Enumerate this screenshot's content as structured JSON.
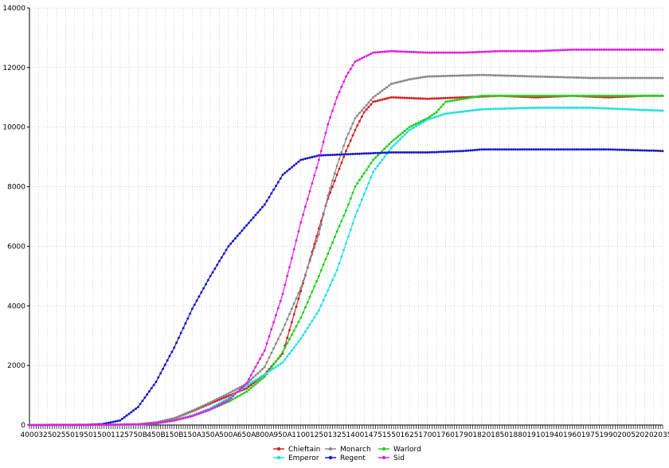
{
  "chart_data": {
    "type": "line",
    "title": "",
    "xlabel": "",
    "ylabel": "",
    "ylim": [
      0,
      14000
    ],
    "yticks": [
      0,
      2000,
      4000,
      6000,
      8000,
      10000,
      12000,
      14000
    ],
    "x_tick_labels": [
      "4000",
      "3250",
      "2550",
      "1950",
      "1500",
      "1125",
      "750B",
      "450B",
      "150B",
      "150A",
      "350A",
      "500A",
      "650A",
      "800A",
      "950A",
      "1100",
      "1250",
      "1325",
      "1400",
      "1475",
      "1550",
      "1625",
      "1700",
      "1760",
      "1790",
      "1820",
      "1850",
      "1880",
      "1910",
      "1940",
      "1960",
      "1975",
      "1990",
      "2005",
      "2020",
      "2035"
    ],
    "grid": true,
    "legend_position": "bottom-center",
    "series": [
      {
        "name": "Chieftain",
        "color": "#d62020",
        "points": [
          [
            0,
            0
          ],
          [
            4,
            5
          ],
          [
            6,
            25
          ],
          [
            7,
            80
          ],
          [
            8,
            220
          ],
          [
            9,
            460
          ],
          [
            10,
            720
          ],
          [
            11,
            980
          ],
          [
            12,
            1230
          ],
          [
            13,
            1700
          ],
          [
            14,
            2400
          ],
          [
            15,
            4500
          ],
          [
            16,
            6600
          ],
          [
            16.5,
            7600
          ],
          [
            17,
            8400
          ],
          [
            17.5,
            9200
          ],
          [
            18,
            9900
          ],
          [
            18.5,
            10500
          ],
          [
            19,
            10850
          ],
          [
            20,
            11000
          ],
          [
            22,
            10950
          ],
          [
            24,
            11000
          ],
          [
            26,
            11050
          ],
          [
            28,
            11000
          ],
          [
            30,
            11050
          ],
          [
            32,
            11000
          ],
          [
            34,
            11050
          ],
          [
            35,
            11050
          ]
        ]
      },
      {
        "name": "Monarch",
        "color": "#8a8a8a",
        "points": [
          [
            0,
            0
          ],
          [
            4,
            5
          ],
          [
            6,
            25
          ],
          [
            7,
            90
          ],
          [
            8,
            230
          ],
          [
            9,
            480
          ],
          [
            10,
            760
          ],
          [
            11,
            1060
          ],
          [
            12,
            1380
          ],
          [
            13,
            1950
          ],
          [
            14,
            3200
          ],
          [
            15,
            4600
          ],
          [
            16,
            6400
          ],
          [
            16.5,
            7700
          ],
          [
            17,
            8700
          ],
          [
            17.5,
            9600
          ],
          [
            18,
            10300
          ],
          [
            19,
            11000
          ],
          [
            20,
            11450
          ],
          [
            21,
            11600
          ],
          [
            22,
            11700
          ],
          [
            25,
            11750
          ],
          [
            28,
            11700
          ],
          [
            31,
            11650
          ],
          [
            35,
            11650
          ]
        ]
      },
      {
        "name": "Warlord",
        "color": "#20d020",
        "points": [
          [
            0,
            0
          ],
          [
            4,
            5
          ],
          [
            6,
            20
          ],
          [
            7,
            60
          ],
          [
            8,
            160
          ],
          [
            9,
            320
          ],
          [
            10,
            520
          ],
          [
            11,
            780
          ],
          [
            12,
            1120
          ],
          [
            13,
            1620
          ],
          [
            14,
            2450
          ],
          [
            15,
            3600
          ],
          [
            16,
            5000
          ],
          [
            17,
            6500
          ],
          [
            17.5,
            7200
          ],
          [
            18,
            8000
          ],
          [
            19,
            8900
          ],
          [
            20,
            9500
          ],
          [
            21,
            10000
          ],
          [
            22,
            10300
          ],
          [
            22.5,
            10500
          ],
          [
            23,
            10850
          ],
          [
            25,
            11050
          ],
          [
            28,
            11050
          ],
          [
            31,
            11050
          ],
          [
            35,
            11050
          ]
        ]
      },
      {
        "name": "Emperor",
        "color": "#20e0e0",
        "points": [
          [
            0,
            0
          ],
          [
            4,
            5
          ],
          [
            6,
            15
          ],
          [
            7,
            50
          ],
          [
            8,
            150
          ],
          [
            9,
            320
          ],
          [
            10,
            560
          ],
          [
            11,
            900
          ],
          [
            12,
            1320
          ],
          [
            13,
            1700
          ],
          [
            14,
            2100
          ],
          [
            15,
            2900
          ],
          [
            16,
            3850
          ],
          [
            17,
            5200
          ],
          [
            18,
            7000
          ],
          [
            19,
            8500
          ],
          [
            20,
            9300
          ],
          [
            21,
            9900
          ],
          [
            22,
            10250
          ],
          [
            23,
            10450
          ],
          [
            25,
            10600
          ],
          [
            28,
            10650
          ],
          [
            31,
            10650
          ],
          [
            35,
            10550
          ]
        ]
      },
      {
        "name": "Regent",
        "color": "#1a1ac8",
        "points": [
          [
            0,
            0
          ],
          [
            3,
            5
          ],
          [
            4,
            30
          ],
          [
            5,
            150
          ],
          [
            6,
            600
          ],
          [
            7,
            1450
          ],
          [
            8,
            2600
          ],
          [
            9,
            3900
          ],
          [
            10,
            5000
          ],
          [
            11,
            6000
          ],
          [
            12,
            6700
          ],
          [
            13,
            7400
          ],
          [
            14,
            8400
          ],
          [
            15,
            8900
          ],
          [
            16,
            9050
          ],
          [
            18,
            9100
          ],
          [
            20,
            9150
          ],
          [
            22,
            9150
          ],
          [
            24,
            9200
          ],
          [
            25,
            9250
          ],
          [
            26,
            9250
          ],
          [
            27,
            9250
          ],
          [
            28,
            9250
          ],
          [
            30,
            9250
          ],
          [
            32,
            9250
          ],
          [
            35,
            9200
          ]
        ]
      },
      {
        "name": "Sid",
        "color": "#e020e0",
        "points": [
          [
            0,
            0
          ],
          [
            4,
            5
          ],
          [
            6,
            20
          ],
          [
            7,
            60
          ],
          [
            8,
            150
          ],
          [
            9,
            300
          ],
          [
            10,
            520
          ],
          [
            11,
            830
          ],
          [
            12,
            1400
          ],
          [
            13,
            2500
          ],
          [
            14,
            4400
          ],
          [
            15,
            6800
          ],
          [
            16,
            8900
          ],
          [
            16.5,
            10100
          ],
          [
            17,
            11000
          ],
          [
            17.5,
            11700
          ],
          [
            18,
            12200
          ],
          [
            19,
            12500
          ],
          [
            20,
            12550
          ],
          [
            22,
            12500
          ],
          [
            24,
            12500
          ],
          [
            26,
            12550
          ],
          [
            28,
            12550
          ],
          [
            30,
            12600
          ],
          [
            32,
            12600
          ],
          [
            35,
            12600
          ]
        ]
      }
    ]
  }
}
